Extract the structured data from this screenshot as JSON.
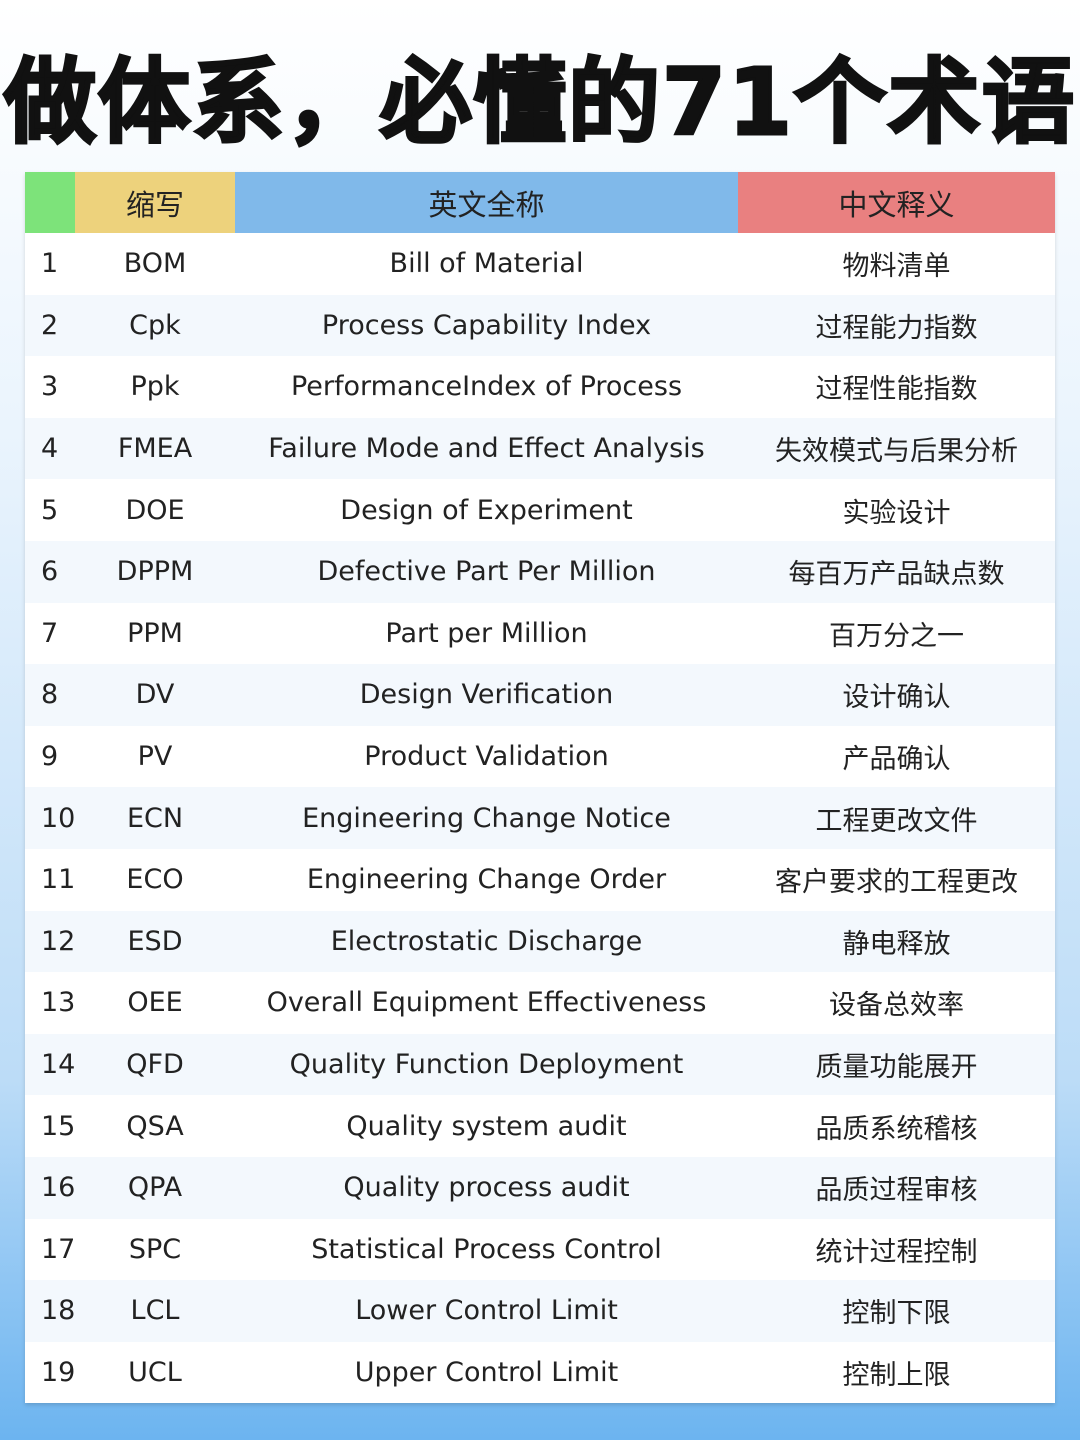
{
  "title": "做体系，必懂的71个术语",
  "colors": {
    "col_index": "#7de37a",
    "col_abbr": "#edd27c",
    "col_en": "#80b9ea",
    "col_cn": "#e98080",
    "bg_bottom": "#6cb4f0"
  },
  "headers": {
    "index": "",
    "abbr": "缩写",
    "en": "英文全称",
    "cn": "中文释义"
  },
  "rows": [
    {
      "n": "1",
      "abbr": "BOM",
      "en": "Bill of Material",
      "cn": "物料清单"
    },
    {
      "n": "2",
      "abbr": "Cpk",
      "en": "Process Capability Index",
      "cn": "过程能力指数"
    },
    {
      "n": "3",
      "abbr": "Ppk",
      "en": "PerformanceIndex of Process",
      "cn": "过程性能指数"
    },
    {
      "n": "4",
      "abbr": "FMEA",
      "en": "Failure Mode and Effect Analysis",
      "cn": "失效模式与后果分析"
    },
    {
      "n": "5",
      "abbr": "DOE",
      "en": "Design of Experiment",
      "cn": "实验设计"
    },
    {
      "n": "6",
      "abbr": "DPPM",
      "en": "Defective Part Per Million",
      "cn": "每百万产品缺点数"
    },
    {
      "n": "7",
      "abbr": "PPM",
      "en": "Part per Million",
      "cn": "百万分之一"
    },
    {
      "n": "8",
      "abbr": "DV",
      "en": "Design Verification",
      "cn": "设计确认"
    },
    {
      "n": "9",
      "abbr": "PV",
      "en": "Product Validation",
      "cn": "产品确认"
    },
    {
      "n": "10",
      "abbr": "ECN",
      "en": "Engineering Change Notice",
      "cn": "工程更改文件"
    },
    {
      "n": "11",
      "abbr": "ECO",
      "en": "Engineering Change Order",
      "cn": "客户要求的工程更改"
    },
    {
      "n": "12",
      "abbr": "ESD",
      "en": "Electrostatic Discharge",
      "cn": "静电释放"
    },
    {
      "n": "13",
      "abbr": "OEE",
      "en": "Overall Equipment Effectiveness",
      "cn": "设备总效率"
    },
    {
      "n": "14",
      "abbr": "QFD",
      "en": "Quality Function Deployment",
      "cn": "质量功能展开"
    },
    {
      "n": "15",
      "abbr": "QSA",
      "en": "Quality system audit",
      "cn": "品质系统稽核"
    },
    {
      "n": "16",
      "abbr": "QPA",
      "en": "Quality process audit",
      "cn": "品质过程审核"
    },
    {
      "n": "17",
      "abbr": "SPC",
      "en": "Statistical Process Control",
      "cn": "统计过程控制"
    },
    {
      "n": "18",
      "abbr": "LCL",
      "en": "Lower Control Limit",
      "cn": "控制下限"
    },
    {
      "n": "19",
      "abbr": "UCL",
      "en": "Upper Control Limit",
      "cn": "控制上限"
    }
  ]
}
